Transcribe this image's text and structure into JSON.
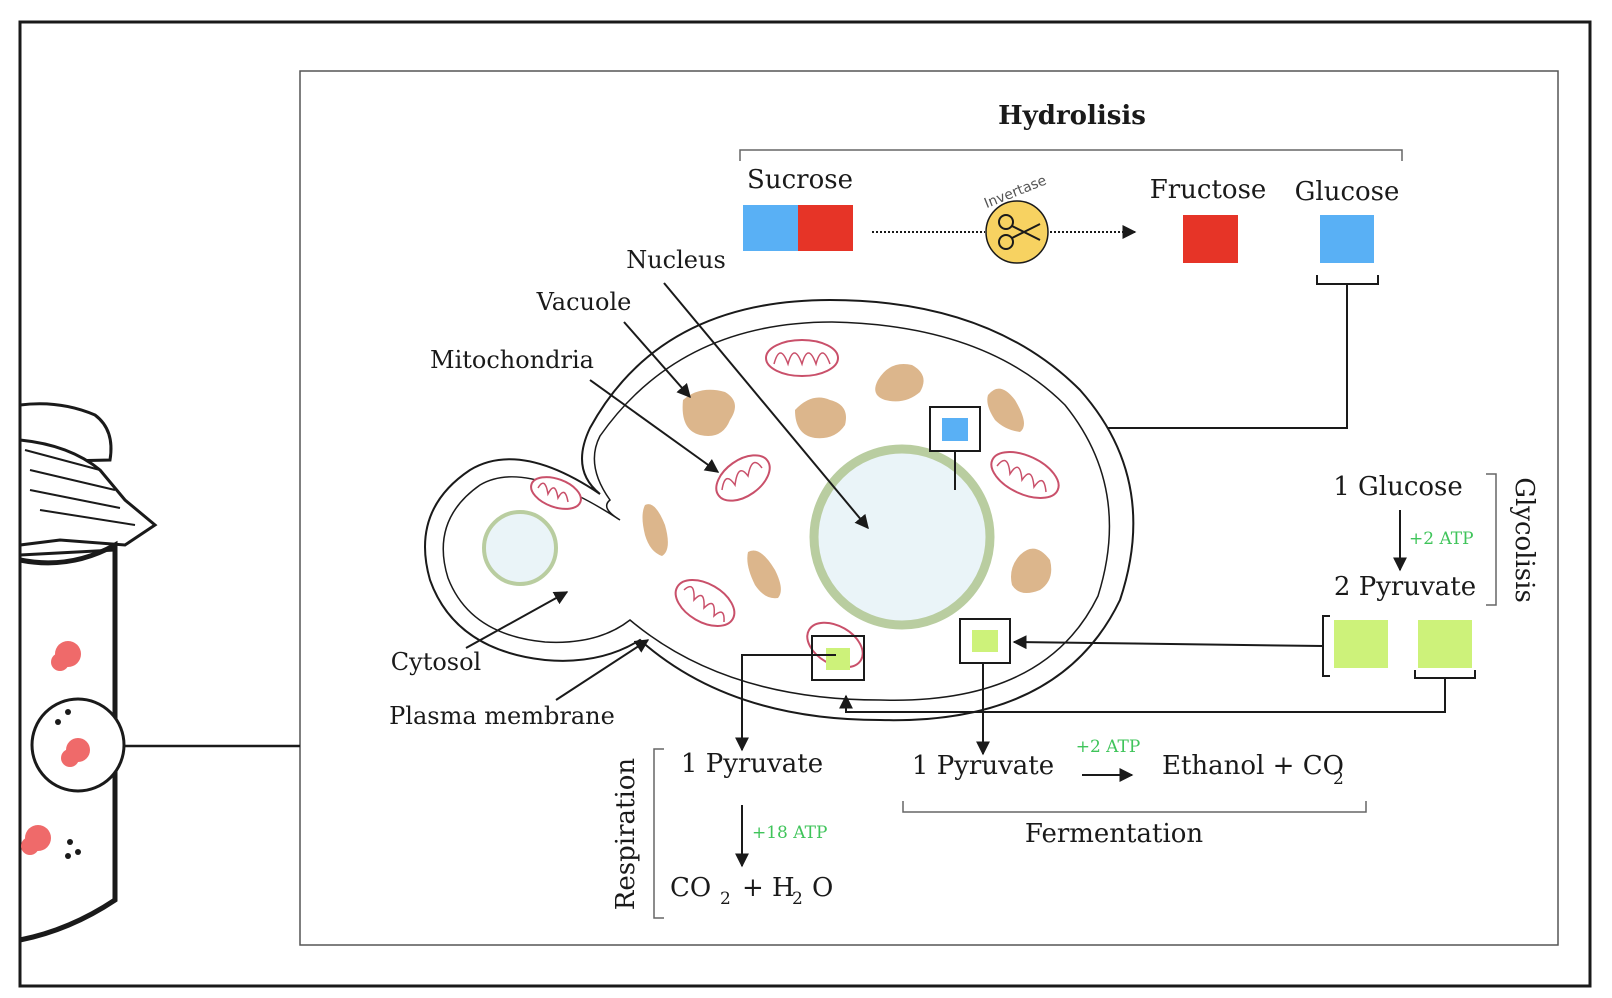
{
  "hydrolysis": {
    "title": "Hydrolisis",
    "sucrose": "Sucrose",
    "enzyme": "Invertase",
    "fructose": "Fructose",
    "glucose": "Glucose"
  },
  "cell_labels": {
    "nucleus": "Nucleus",
    "vacuole": "Vacuole",
    "mitochondria": "Mitochondria",
    "cytosol": "Cytosol",
    "plasma_membrane": "Plasma membrane"
  },
  "glycolysis": {
    "title": "Glycolisis",
    "input": "1 Glucose",
    "atp": "+2 ATP",
    "output": "2 Pyruvate"
  },
  "respiration": {
    "title": "Respiration",
    "input": "1 Pyruvate",
    "atp": "+18 ATP",
    "co2": "CO",
    "co2_sub": "2",
    "plus": "+ H",
    "h2o_sub": "2",
    "h2o_o": "O"
  },
  "fermentation": {
    "title": "Fermentation",
    "input": "1 Pyruvate",
    "atp": "+2 ATP",
    "products": "Ethanol +  CO",
    "co2_sub": "2"
  },
  "colors": {
    "glucose_blue": "#59b0f5",
    "fructose_red": "#e63427",
    "pyruvate_green": "#cdf27a",
    "atp_green": "#3fc45a",
    "vacuole_tan": "#dcb68c",
    "mito_pink": "#c9506a",
    "nucleus_ring": "#b9cda0",
    "nucleus_fill": "#eaf4f8",
    "enzyme_yellow": "#f7d261"
  },
  "icons": [
    "scissors-icon",
    "jar-icon"
  ]
}
